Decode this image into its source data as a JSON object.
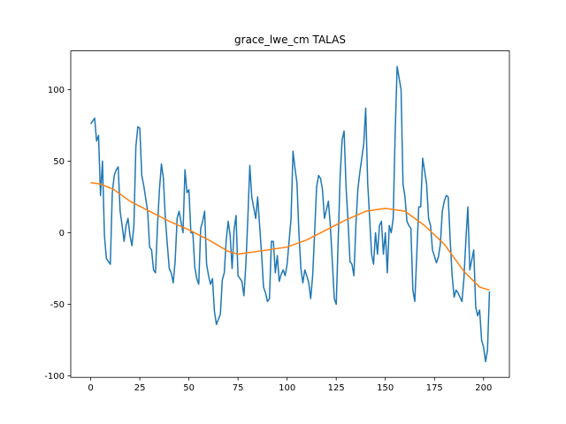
{
  "chart_data": {
    "type": "line",
    "title": "grace_lwe_cm TALAS",
    "xlim": [
      -10.15,
      213.15
    ],
    "xticks": [
      0,
      25,
      50,
      75,
      100,
      125,
      150,
      175,
      200
    ],
    "ylim": [
      -101,
      127
    ],
    "yticks": [
      -100,
      -50,
      0,
      50,
      100
    ],
    "series": [
      {
        "color": "#1f77b4",
        "x": [
          0,
          1,
          2,
          3,
          4,
          5,
          6,
          7,
          8,
          10,
          11,
          12,
          13,
          14,
          15,
          16,
          17,
          18,
          19,
          20,
          21,
          22,
          23,
          24,
          25,
          26,
          27,
          29,
          30,
          31,
          32,
          33,
          34,
          35,
          36,
          37,
          38,
          39,
          40,
          41,
          42,
          43,
          44,
          45,
          47,
          48,
          49,
          50,
          51,
          52,
          53,
          54,
          55,
          56,
          57,
          58,
          59,
          60,
          61,
          62,
          63,
          64,
          66,
          67,
          68,
          69,
          70,
          71,
          72,
          73,
          74,
          75,
          76,
          77,
          78,
          79,
          80,
          81,
          82,
          84,
          85,
          86,
          87,
          88,
          89,
          90,
          91,
          92,
          93,
          94,
          95,
          96,
          97,
          98,
          99,
          100,
          102,
          103,
          104,
          105,
          106,
          107,
          108,
          109,
          110,
          111,
          112,
          113,
          114,
          115,
          116,
          117,
          118,
          119,
          121,
          122,
          123,
          124,
          125,
          126,
          127,
          128,
          129,
          130,
          131,
          132,
          133,
          134,
          135,
          136,
          137,
          139,
          140,
          141,
          142,
          143,
          144,
          145,
          146,
          147,
          148,
          149,
          150,
          151,
          152,
          153,
          154,
          155,
          156,
          158,
          159,
          160,
          161,
          162,
          163,
          164,
          165,
          166,
          167,
          168,
          169,
          170,
          171,
          172,
          173,
          174,
          176,
          177,
          178,
          179,
          180,
          181,
          182,
          183,
          184,
          185,
          186,
          187,
          188,
          189,
          190,
          191,
          192,
          193,
          195,
          196,
          197,
          198,
          199,
          200,
          201,
          202,
          203
        ],
        "values": [
          76,
          78,
          80,
          64,
          68,
          26,
          50,
          -2,
          -18,
          -22,
          28,
          40,
          44,
          46,
          15,
          5,
          -6,
          5,
          10,
          -2,
          -9,
          5,
          60,
          74,
          73,
          40,
          33,
          15,
          -10,
          -12,
          -26,
          -28,
          5,
          30,
          48,
          38,
          10,
          -8,
          -25,
          -28,
          -35,
          -20,
          10,
          15,
          0,
          44,
          28,
          30,
          0,
          0,
          -24,
          -32,
          -36,
          3,
          8,
          15,
          -22,
          -30,
          -36,
          -32,
          -55,
          -64,
          -57,
          -33,
          -28,
          -5,
          8,
          -2,
          -25,
          2,
          12,
          -30,
          -32,
          -34,
          -44,
          -22,
          10,
          47,
          25,
          10,
          25,
          5,
          -15,
          -38,
          -42,
          -48,
          -46,
          -6,
          -6,
          -28,
          -16,
          -34,
          -29,
          -26,
          -30,
          -22,
          10,
          57,
          45,
          35,
          0,
          -25,
          -35,
          -26,
          -30,
          -35,
          -46,
          -30,
          0,
          32,
          40,
          38,
          30,
          10,
          22,
          5,
          -20,
          -46,
          -50,
          -5,
          40,
          65,
          71,
          32,
          8,
          -20,
          -22,
          -30,
          5,
          30,
          42,
          62,
          87,
          35,
          10,
          -15,
          -22,
          0,
          -15,
          5,
          8,
          -15,
          0,
          -28,
          5,
          0,
          10,
          70,
          116,
          100,
          34,
          25,
          8,
          5,
          3,
          -40,
          -48,
          -15,
          18,
          18,
          52,
          43,
          34,
          10,
          5,
          -12,
          -21,
          -17,
          -8,
          15,
          22,
          26,
          25,
          -5,
          -30,
          -45,
          -40,
          -42,
          -45,
          -48,
          -32,
          -5,
          18,
          -26,
          -12,
          -52,
          -58,
          -54,
          -75,
          -80,
          -90,
          -82,
          -41
        ]
      },
      {
        "color": "#ff7f0e",
        "x": [
          0,
          5,
          12,
          20,
          30,
          40,
          50,
          60,
          70,
          75,
          80,
          90,
          100,
          110,
          120,
          130,
          140,
          150,
          160,
          170,
          180,
          190,
          198,
          203
        ],
        "values": [
          35,
          34,
          30,
          22,
          15,
          8,
          2,
          -5,
          -13,
          -15,
          -14,
          -12,
          -10,
          -5,
          2,
          9,
          15,
          17,
          15,
          5,
          -8,
          -27,
          -38,
          -40
        ]
      }
    ]
  }
}
